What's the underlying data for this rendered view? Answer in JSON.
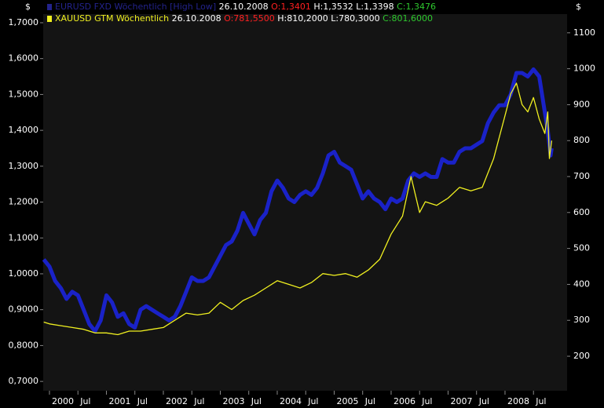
{
  "chart_data": {
    "type": "line",
    "y_unit": "$",
    "y2_unit": "$",
    "xlim": [
      1999.89,
      2009.09
    ],
    "xticks": [
      {
        "value": 2000,
        "label": "2000"
      },
      {
        "value": 2000.5,
        "label": "Jul"
      },
      {
        "value": 2001,
        "label": "2001"
      },
      {
        "value": 2001.5,
        "label": "Jul"
      },
      {
        "value": 2002,
        "label": "2002"
      },
      {
        "value": 2002.5,
        "label": "Jul"
      },
      {
        "value": 2003,
        "label": "2003"
      },
      {
        "value": 2003.5,
        "label": "Jul"
      },
      {
        "value": 2004,
        "label": "2004"
      },
      {
        "value": 2004.5,
        "label": "Jul"
      },
      {
        "value": 2005,
        "label": "2005"
      },
      {
        "value": 2005.5,
        "label": "Jul"
      },
      {
        "value": 2006,
        "label": "2006"
      },
      {
        "value": 2006.5,
        "label": "Jul"
      },
      {
        "value": 2007,
        "label": "2007"
      },
      {
        "value": 2007.5,
        "label": "Jul"
      },
      {
        "value": 2008,
        "label": "2008"
      },
      {
        "value": 2008.5,
        "label": "Jul"
      }
    ],
    "ylim": [
      0.674,
      1.724
    ],
    "yticks": [
      {
        "value": 0.7,
        "label": "0,7000"
      },
      {
        "value": 0.8,
        "label": "0,8000"
      },
      {
        "value": 0.9,
        "label": "0,9000"
      },
      {
        "value": 1.0,
        "label": "1,0000"
      },
      {
        "value": 1.1,
        "label": "1,1000"
      },
      {
        "value": 1.2,
        "label": "1,2000"
      },
      {
        "value": 1.3,
        "label": "1,3000"
      },
      {
        "value": 1.4,
        "label": "1,4000"
      },
      {
        "value": 1.5,
        "label": "1,5000"
      },
      {
        "value": 1.6,
        "label": "1,6000"
      },
      {
        "value": 1.7,
        "label": "1,7000"
      }
    ],
    "y2lim": [
      104,
      1152
    ],
    "y2ticks": [
      200,
      300,
      400,
      500,
      600,
      700,
      800,
      900,
      1000,
      1100
    ],
    "series": [
      {
        "name": "EURUSD FXD Wöchentlich [High Low]",
        "color": "#1a22c8",
        "legend_color": "#23238c",
        "date": "26.10.2008",
        "ohlc": [
          "O:1,3401",
          "H:1,3532",
          "L:1,3398",
          "C:1,3476"
        ],
        "x": [
          1999.9,
          2000.0,
          2000.1,
          2000.2,
          2000.3,
          2000.4,
          2000.5,
          2000.6,
          2000.7,
          2000.8,
          2000.9,
          2001.0,
          2001.1,
          2001.2,
          2001.3,
          2001.4,
          2001.5,
          2001.6,
          2001.7,
          2001.8,
          2001.9,
          2002.0,
          2002.1,
          2002.2,
          2002.3,
          2002.4,
          2002.5,
          2002.6,
          2002.7,
          2002.8,
          2002.9,
          2003.0,
          2003.1,
          2003.2,
          2003.3,
          2003.4,
          2003.5,
          2003.6,
          2003.7,
          2003.8,
          2003.9,
          2004.0,
          2004.1,
          2004.2,
          2004.3,
          2004.4,
          2004.5,
          2004.6,
          2004.7,
          2004.8,
          2004.9,
          2005.0,
          2005.1,
          2005.2,
          2005.3,
          2005.4,
          2005.5,
          2005.6,
          2005.7,
          2005.8,
          2005.9,
          2006.0,
          2006.1,
          2006.2,
          2006.3,
          2006.4,
          2006.5,
          2006.6,
          2006.7,
          2006.8,
          2006.9,
          2007.0,
          2007.1,
          2007.2,
          2007.3,
          2007.4,
          2007.5,
          2007.6,
          2007.7,
          2007.8,
          2007.9,
          2008.0,
          2008.1,
          2008.2,
          2008.3,
          2008.4,
          2008.5,
          2008.6,
          2008.7,
          2008.75,
          2008.8,
          2008.82
        ],
        "values": [
          1.04,
          1.02,
          0.98,
          0.96,
          0.93,
          0.95,
          0.94,
          0.9,
          0.86,
          0.84,
          0.87,
          0.94,
          0.92,
          0.88,
          0.89,
          0.86,
          0.85,
          0.9,
          0.91,
          0.9,
          0.89,
          0.88,
          0.87,
          0.88,
          0.91,
          0.95,
          0.99,
          0.98,
          0.98,
          0.99,
          1.02,
          1.05,
          1.08,
          1.09,
          1.12,
          1.17,
          1.14,
          1.11,
          1.15,
          1.17,
          1.23,
          1.26,
          1.24,
          1.21,
          1.2,
          1.22,
          1.23,
          1.22,
          1.24,
          1.28,
          1.33,
          1.34,
          1.31,
          1.3,
          1.29,
          1.25,
          1.21,
          1.23,
          1.21,
          1.2,
          1.18,
          1.21,
          1.2,
          1.21,
          1.26,
          1.28,
          1.27,
          1.28,
          1.27,
          1.27,
          1.32,
          1.31,
          1.31,
          1.34,
          1.35,
          1.35,
          1.36,
          1.37,
          1.42,
          1.45,
          1.47,
          1.47,
          1.5,
          1.56,
          1.56,
          1.55,
          1.57,
          1.55,
          1.45,
          1.4,
          1.33,
          1.35
        ]
      },
      {
        "name": "XAUUSD GTM Wöchentlich",
        "color": "#f0f020",
        "legend_color": "#f0f020",
        "axis": "y2",
        "date": "26.10.2008",
        "ohlc": [
          "O:781,5500",
          "H:810,2000",
          "L:780,3000",
          "C:801,6000"
        ],
        "x": [
          1999.9,
          2000.0,
          2000.2,
          2000.4,
          2000.6,
          2000.8,
          2001.0,
          2001.2,
          2001.4,
          2001.6,
          2001.8,
          2002.0,
          2002.2,
          2002.4,
          2002.6,
          2002.8,
          2003.0,
          2003.2,
          2003.4,
          2003.6,
          2003.8,
          2004.0,
          2004.2,
          2004.4,
          2004.6,
          2004.8,
          2005.0,
          2005.2,
          2005.4,
          2005.6,
          2005.8,
          2006.0,
          2006.2,
          2006.35,
          2006.5,
          2006.6,
          2006.8,
          2007.0,
          2007.2,
          2007.4,
          2007.6,
          2007.8,
          2008.0,
          2008.1,
          2008.2,
          2008.3,
          2008.4,
          2008.5,
          2008.6,
          2008.7,
          2008.75,
          2008.78,
          2008.82
        ],
        "values": [
          295,
          290,
          285,
          280,
          275,
          265,
          265,
          260,
          270,
          270,
          275,
          280,
          300,
          320,
          315,
          320,
          350,
          330,
          355,
          370,
          390,
          410,
          400,
          390,
          405,
          430,
          425,
          430,
          420,
          440,
          470,
          540,
          590,
          700,
          600,
          630,
          620,
          640,
          670,
          660,
          670,
          750,
          870,
          930,
          960,
          900,
          880,
          920,
          860,
          820,
          880,
          750,
          800
        ]
      }
    ]
  }
}
